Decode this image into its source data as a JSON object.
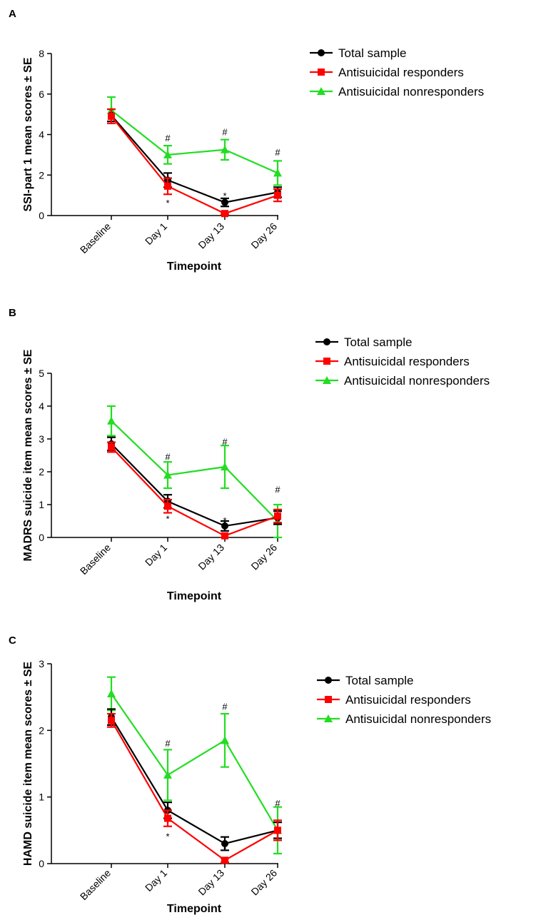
{
  "chart_data": [
    {
      "panel": "A",
      "type": "line",
      "ylabel": "SSI-part 1 mean scores ± SE",
      "xlabel": "Timepoint",
      "ylim": [
        0,
        8
      ],
      "yticks": [
        "0",
        "2",
        "4",
        "6",
        "8"
      ],
      "categories": [
        "Baseline",
        "Day 1",
        "Day 13",
        "Day 26"
      ],
      "series": [
        {
          "name": "Total sample",
          "color": "#000000",
          "marker": "circle",
          "values": [
            4.95,
            1.75,
            0.65,
            1.15
          ],
          "se": [
            0.3,
            0.35,
            0.2,
            0.25
          ]
        },
        {
          "name": "Antisuicidal responders",
          "color": "#ff0000",
          "marker": "square",
          "values": [
            4.9,
            1.45,
            0.1,
            1.0
          ],
          "se": [
            0.35,
            0.4,
            0.05,
            0.3
          ]
        },
        {
          "name": "Antisuicidal nonresponders",
          "color": "#22dd22",
          "marker": "triangle",
          "values": [
            5.2,
            3.0,
            3.25,
            2.1
          ],
          "se": [
            0.65,
            0.45,
            0.5,
            0.6
          ]
        }
      ],
      "annotations": [
        {
          "category": "Day 1",
          "text": "#",
          "y": 3.8
        },
        {
          "category": "Day 13",
          "text": "#",
          "y": 4.1
        },
        {
          "category": "Day 26",
          "text": "#",
          "y": 3.1
        },
        {
          "category": "Day 1",
          "text": "*",
          "y": 0.6
        },
        {
          "category": "Day 13",
          "text": "*",
          "y": 0.95
        }
      ]
    },
    {
      "panel": "B",
      "type": "line",
      "ylabel": "MADRS suicide item mean scores ± SE",
      "xlabel": "Timepoint",
      "ylim": [
        0,
        5
      ],
      "yticks": [
        "0",
        "1",
        "2",
        "3",
        "4",
        "5"
      ],
      "categories": [
        "Baseline",
        "Day 1",
        "Day 13",
        "Day 26"
      ],
      "series": [
        {
          "name": "Total sample",
          "color": "#000000",
          "marker": "circle",
          "values": [
            2.85,
            1.1,
            0.35,
            0.6
          ],
          "se": [
            0.2,
            0.2,
            0.15,
            0.2
          ]
        },
        {
          "name": "Antisuicidal responders",
          "color": "#ff0000",
          "marker": "square",
          "values": [
            2.75,
            0.95,
            0.05,
            0.65
          ],
          "se": [
            0.15,
            0.2,
            0.05,
            0.2
          ]
        },
        {
          "name": "Antisuicidal nonresponders",
          "color": "#22dd22",
          "marker": "triangle",
          "values": [
            3.55,
            1.9,
            2.15,
            0.5
          ],
          "se": [
            0.45,
            0.4,
            0.65,
            0.5
          ]
        }
      ],
      "annotations": [
        {
          "category": "Day 1",
          "text": "#",
          "y": 2.45
        },
        {
          "category": "Day 13",
          "text": "#",
          "y": 2.9
        },
        {
          "category": "Day 26",
          "text": "#",
          "y": 1.45
        },
        {
          "category": "Day 1",
          "text": "*",
          "y": 0.55
        },
        {
          "category": "Day 13",
          "text": "*",
          "y": 0.5
        }
      ]
    },
    {
      "panel": "C",
      "type": "line",
      "ylabel": "HAMD suicide item mean scores ± SE",
      "xlabel": "Timepoint",
      "ylim": [
        0,
        3
      ],
      "yticks": [
        "0",
        "1",
        "2",
        "3"
      ],
      "categories": [
        "Baseline",
        "Day 1",
        "Day 13",
        "Day 26"
      ],
      "series": [
        {
          "name": "Total sample",
          "color": "#000000",
          "marker": "circle",
          "values": [
            2.2,
            0.8,
            0.3,
            0.5
          ],
          "se": [
            0.12,
            0.12,
            0.1,
            0.12
          ]
        },
        {
          "name": "Antisuicidal responders",
          "color": "#ff0000",
          "marker": "square",
          "values": [
            2.15,
            0.68,
            0.05,
            0.5
          ],
          "se": [
            0.1,
            0.12,
            0.03,
            0.15
          ]
        },
        {
          "name": "Antisuicidal nonresponders",
          "color": "#22dd22",
          "marker": "triangle",
          "values": [
            2.55,
            1.33,
            1.85,
            0.5
          ],
          "se": [
            0.25,
            0.38,
            0.4,
            0.35
          ]
        }
      ],
      "annotations": [
        {
          "category": "Day 1",
          "text": "#",
          "y": 1.8
        },
        {
          "category": "Day 13",
          "text": "#",
          "y": 2.35
        },
        {
          "category": "Day 26",
          "text": "#",
          "y": 0.9
        },
        {
          "category": "Day 1",
          "text": "*",
          "y": 0.4
        },
        {
          "category": "Day 13",
          "text": "*",
          "y": 0.22
        }
      ]
    }
  ]
}
